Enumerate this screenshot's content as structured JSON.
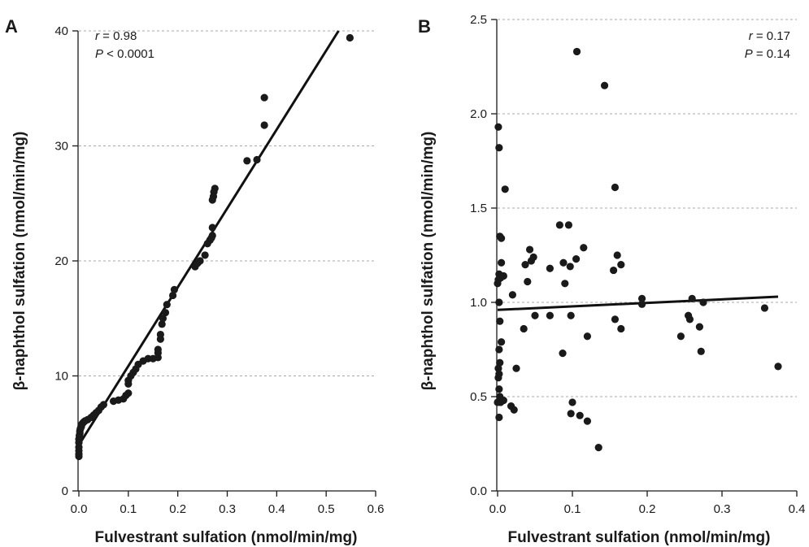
{
  "chart_data": [
    {
      "type": "scatter",
      "panel_label": "A",
      "xlabel": "Fulvestrant sulfation (nmol/min/mg)",
      "ylabel": "β-naphthol sulfation (nmol/min/mg)",
      "xlim": [
        0,
        0.6
      ],
      "ylim": [
        0,
        40
      ],
      "xticks": [
        0,
        0.1,
        0.2,
        0.3,
        0.4,
        0.5,
        0.6
      ],
      "xtick_labels": [
        "0.0",
        "0.1",
        "0.2",
        "0.3",
        "0.4",
        "0.5",
        "0.6"
      ],
      "yticks": [
        0,
        10,
        20,
        30,
        40
      ],
      "ytick_labels": [
        "0",
        "10",
        "20",
        "30",
        "40"
      ],
      "grid": "horizontal dashed",
      "annotations": {
        "r_symbol": "r",
        "r_value": " = 0.98",
        "p_symbol": "P",
        "p_value": " < 0.0001"
      },
      "fit_line": {
        "x": [
          0.0,
          0.525
        ],
        "y": [
          4.0,
          40.0
        ]
      },
      "points": [
        [
          0.0,
          3.0
        ],
        [
          0.0,
          3.2
        ],
        [
          0.0,
          3.5
        ],
        [
          0.0,
          3.8
        ],
        [
          0.0,
          4.2
        ],
        [
          0.0,
          4.5
        ],
        [
          0.001,
          4.8
        ],
        [
          0.002,
          5.0
        ],
        [
          0.002,
          5.2
        ],
        [
          0.003,
          5.4
        ],
        [
          0.004,
          5.5
        ],
        [
          0.005,
          5.6
        ],
        [
          0.006,
          5.8
        ],
        [
          0.008,
          5.9
        ],
        [
          0.01,
          6.0
        ],
        [
          0.013,
          6.1
        ],
        [
          0.018,
          6.2
        ],
        [
          0.025,
          6.4
        ],
        [
          0.03,
          6.6
        ],
        [
          0.035,
          6.8
        ],
        [
          0.04,
          7.0
        ],
        [
          0.045,
          7.3
        ],
        [
          0.05,
          7.5
        ],
        [
          0.07,
          7.8
        ],
        [
          0.08,
          7.9
        ],
        [
          0.09,
          8.0
        ],
        [
          0.095,
          8.3
        ],
        [
          0.1,
          8.5
        ],
        [
          0.1,
          9.3
        ],
        [
          0.1,
          9.6
        ],
        [
          0.105,
          10.0
        ],
        [
          0.11,
          10.3
        ],
        [
          0.115,
          10.6
        ],
        [
          0.12,
          11.0
        ],
        [
          0.13,
          11.3
        ],
        [
          0.14,
          11.5
        ],
        [
          0.15,
          11.5
        ],
        [
          0.16,
          11.6
        ],
        [
          0.16,
          12.0
        ],
        [
          0.16,
          12.3
        ],
        [
          0.165,
          13.2
        ],
        [
          0.165,
          13.6
        ],
        [
          0.168,
          14.5
        ],
        [
          0.17,
          15.0
        ],
        [
          0.175,
          15.5
        ],
        [
          0.178,
          16.2
        ],
        [
          0.19,
          17.0
        ],
        [
          0.193,
          17.5
        ],
        [
          0.235,
          19.5
        ],
        [
          0.24,
          19.8
        ],
        [
          0.245,
          20.0
        ],
        [
          0.255,
          20.5
        ],
        [
          0.26,
          21.5
        ],
        [
          0.265,
          21.8
        ],
        [
          0.268,
          22.0
        ],
        [
          0.27,
          22.2
        ],
        [
          0.27,
          22.9
        ],
        [
          0.27,
          25.3
        ],
        [
          0.272,
          25.6
        ],
        [
          0.273,
          26.0
        ],
        [
          0.275,
          26.3
        ],
        [
          0.34,
          28.7
        ],
        [
          0.36,
          28.8
        ],
        [
          0.375,
          31.8
        ],
        [
          0.375,
          34.2
        ],
        [
          0.548,
          39.4
        ]
      ]
    },
    {
      "type": "scatter",
      "panel_label": "B",
      "xlabel": "Fulvestrant sulfation (nmol/min/mg)",
      "ylabel": "β-naphthol sulfation (nmol/min/mg)",
      "xlim": [
        0,
        0.4
      ],
      "ylim": [
        0,
        2.5
      ],
      "xticks": [
        0,
        0.1,
        0.2,
        0.3,
        0.4
      ],
      "xtick_labels": [
        "0.0",
        "0.1",
        "0.2",
        "0.3",
        "0.4"
      ],
      "yticks": [
        0,
        0.5,
        1.0,
        1.5,
        2.0,
        2.5
      ],
      "ytick_labels": [
        "0.0",
        "0.5",
        "1.0",
        "1.5",
        "2.0",
        "2.5"
      ],
      "grid": "horizontal dashed",
      "annotations": {
        "r_symbol": "r",
        "r_value": " = 0.17",
        "p_symbol": "P",
        "p_value": " = 0.14"
      },
      "fit_line": {
        "x": [
          0.0,
          0.375
        ],
        "y": [
          0.96,
          1.03
        ]
      },
      "points": [
        [
          0.001,
          1.93
        ],
        [
          0.002,
          1.82
        ],
        [
          0.01,
          1.6
        ],
        [
          0.003,
          1.35
        ],
        [
          0.005,
          1.34
        ],
        [
          0.005,
          1.21
        ],
        [
          0.002,
          1.15
        ],
        [
          0.001,
          1.12
        ],
        [
          0.004,
          1.13
        ],
        [
          0.0,
          1.1
        ],
        [
          0.008,
          1.14
        ],
        [
          0.02,
          1.04
        ],
        [
          0.002,
          1.0
        ],
        [
          0.003,
          0.9
        ],
        [
          0.005,
          0.79
        ],
        [
          0.002,
          0.75
        ],
        [
          0.003,
          0.68
        ],
        [
          0.001,
          0.65
        ],
        [
          0.002,
          0.62
        ],
        [
          0.001,
          0.6
        ],
        [
          0.002,
          0.54
        ],
        [
          0.003,
          0.5
        ],
        [
          0.0,
          0.47
        ],
        [
          0.004,
          0.47
        ],
        [
          0.006,
          0.48
        ],
        [
          0.008,
          0.48
        ],
        [
          0.002,
          0.39
        ],
        [
          0.018,
          0.45
        ],
        [
          0.022,
          0.43
        ],
        [
          0.025,
          0.65
        ],
        [
          0.035,
          0.86
        ],
        [
          0.037,
          1.2
        ],
        [
          0.04,
          1.11
        ],
        [
          0.043,
          1.28
        ],
        [
          0.045,
          1.22
        ],
        [
          0.048,
          1.24
        ],
        [
          0.05,
          0.93
        ],
        [
          0.07,
          0.93
        ],
        [
          0.07,
          1.18
        ],
        [
          0.083,
          1.41
        ],
        [
          0.088,
          1.21
        ],
        [
          0.087,
          0.73
        ],
        [
          0.09,
          1.1
        ],
        [
          0.095,
          1.41
        ],
        [
          0.097,
          1.19
        ],
        [
          0.098,
          0.93
        ],
        [
          0.098,
          0.41
        ],
        [
          0.1,
          0.47
        ],
        [
          0.105,
          1.23
        ],
        [
          0.106,
          2.33
        ],
        [
          0.11,
          0.4
        ],
        [
          0.115,
          1.29
        ],
        [
          0.12,
          0.37
        ],
        [
          0.12,
          0.82
        ],
        [
          0.135,
          0.23
        ],
        [
          0.143,
          2.15
        ],
        [
          0.155,
          1.17
        ],
        [
          0.157,
          1.61
        ],
        [
          0.157,
          0.91
        ],
        [
          0.16,
          1.25
        ],
        [
          0.165,
          1.2
        ],
        [
          0.165,
          0.86
        ],
        [
          0.193,
          1.02
        ],
        [
          0.193,
          0.99
        ],
        [
          0.245,
          0.82
        ],
        [
          0.255,
          0.93
        ],
        [
          0.257,
          0.91
        ],
        [
          0.26,
          1.02
        ],
        [
          0.27,
          0.87
        ],
        [
          0.272,
          0.74
        ],
        [
          0.275,
          1.0
        ],
        [
          0.357,
          0.97
        ],
        [
          0.375,
          0.66
        ]
      ]
    }
  ]
}
